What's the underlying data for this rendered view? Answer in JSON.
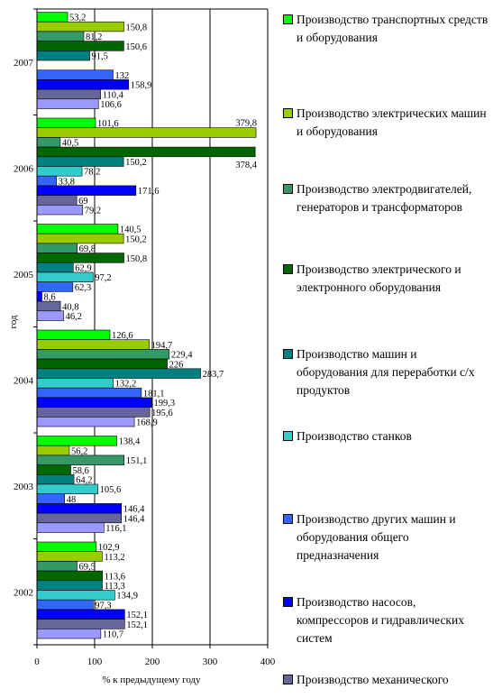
{
  "chart_data": {
    "type": "bar",
    "orientation": "horizontal",
    "xlabel": "% к предыдущему году",
    "ylabel": "год",
    "xlim": [
      0,
      400
    ],
    "xticks": [
      "0",
      "100",
      "200",
      "300",
      "400"
    ],
    "grid": "vertical",
    "legend_position": "right",
    "categories": [
      "2007",
      "2006",
      "2005",
      "2004",
      "2003",
      "2002"
    ],
    "series": [
      {
        "name": "Производство транспортных средств и оборудования",
        "color": "#00ff00",
        "values": [
          53.2,
          101.6,
          140.5,
          126.6,
          138.4,
          102.9
        ],
        "labels": [
          "53,2",
          "101,6",
          "140,5",
          "126,6",
          "138,4",
          "102,9"
        ]
      },
      {
        "name": "Производство электрических машин и оборудования",
        "color": "#99cc00",
        "values": [
          150.8,
          379.8,
          150.2,
          194.7,
          56.2,
          113.2
        ],
        "labels": [
          "150,8",
          "379,8",
          "150,2",
          "194,7",
          "56,2",
          "113,2"
        ]
      },
      {
        "name": "Производство электродвигателей, генераторов и трансформаторов",
        "color": "#339966",
        "values": [
          81.2,
          40.5,
          69.8,
          229.4,
          151.1,
          69.5
        ],
        "labels": [
          "81,2",
          "40,5",
          "69,8",
          "229,4",
          "151,1",
          "69,5"
        ]
      },
      {
        "name": "Производство электрического и электронного оборудования",
        "color": "#006600",
        "values": [
          150.6,
          378.4,
          150.8,
          226,
          58.6,
          113.6
        ],
        "labels": [
          "150,6",
          "378,4",
          "150,8",
          "226",
          "58,6",
          "113,6"
        ]
      },
      {
        "name": "Производство машин и оборудования для переработки с/х продуктов",
        "color": "#008080",
        "values": [
          91.5,
          150.2,
          62.9,
          283.7,
          64.2,
          113.3
        ],
        "labels": [
          "91,5",
          "150,2",
          "62,9",
          "283,7",
          "64,2",
          "113,3"
        ]
      },
      {
        "name": "Производство станков",
        "color": "#33cccc",
        "values": [
          null,
          78.2,
          97.2,
          132.2,
          105.6,
          134.9
        ],
        "labels": [
          "",
          "78,2",
          "97,2",
          "132,2",
          "105,6",
          "134,9"
        ]
      },
      {
        "name": "Производство других машин и оборудования общего предназначения",
        "color": "#3366ff",
        "values": [
          132,
          33.8,
          62.3,
          181.1,
          48,
          97.3
        ],
        "labels": [
          "132",
          "33,8",
          "62,3",
          "181,1",
          "48",
          "97,3"
        ]
      },
      {
        "name": "Производство насосов, компрессоров и гидравлических систем",
        "color": "#0000ff",
        "values": [
          158.9,
          171.6,
          8.6,
          199.3,
          146.4,
          152.1
        ],
        "labels": [
          "158,9",
          "171,6",
          "8,6",
          "199,3",
          "146,4",
          "152,1"
        ]
      },
      {
        "name": "Производство механического",
        "color": "#666699",
        "values": [
          110.4,
          69,
          40.8,
          195.6,
          146.4,
          152.1
        ],
        "labels": [
          "110,4",
          "69",
          "40,8",
          "195,6",
          "146,4",
          "152,1"
        ]
      },
      {
        "name": "",
        "color": "#9999ff",
        "values": [
          106.6,
          79.2,
          46.2,
          168.9,
          116.1,
          110.7
        ],
        "labels": [
          "106,6",
          "79,2",
          "46,2",
          "168,9",
          "116,1",
          "110,7"
        ]
      }
    ]
  }
}
